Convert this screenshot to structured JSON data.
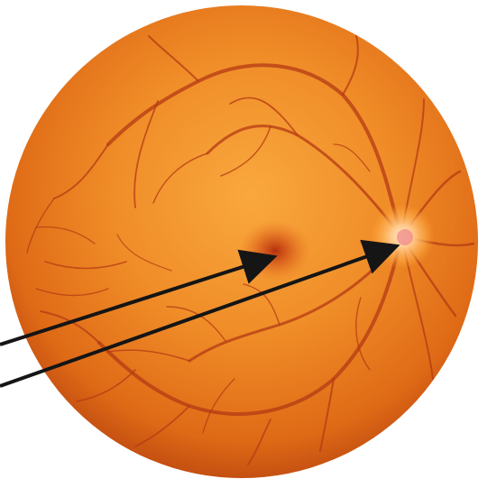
{
  "diagram": {
    "labels": [],
    "colors": {
      "fundus_light": "#f8a23a",
      "fundus_mid": "#ec7a1c",
      "fundus_dark": "#b0360c",
      "vessel": "#b43a14",
      "optic_disc": "#ffe0b8",
      "macula": "#c0300e",
      "arrow": "#151515"
    },
    "arrows": [
      {
        "name": "macula-arrow",
        "points_to": "macula"
      },
      {
        "name": "optic-disc-arrow",
        "points_to": "optic-disc"
      }
    ]
  }
}
